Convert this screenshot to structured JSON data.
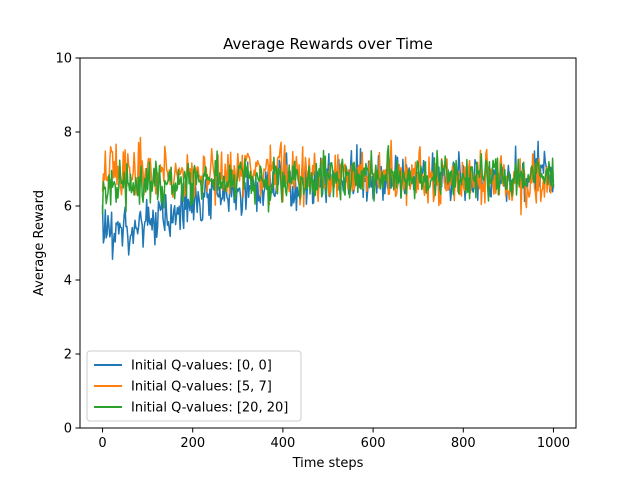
{
  "chart_data": {
    "type": "line",
    "title": "Average Rewards over Time",
    "xlabel": "Time steps",
    "ylabel": "Average Reward",
    "xlim": [
      -50,
      1050
    ],
    "ylim": [
      0,
      10
    ],
    "xticks": [
      0,
      200,
      400,
      600,
      800,
      1000
    ],
    "yticks": [
      0,
      2,
      4,
      6,
      8,
      10
    ],
    "grid": false,
    "legend_position": "lower-left",
    "series": [
      {
        "name": "Initial Q-values: [0, 0]",
        "color": "#1f77b4",
        "x": [
          0,
          50,
          100,
          150,
          200,
          250,
          300,
          350,
          400,
          450,
          500,
          550,
          600,
          650,
          700,
          750,
          800,
          850,
          900,
          950,
          1000
        ],
        "values": [
          5.3,
          5.35,
          5.5,
          5.7,
          6.0,
          6.25,
          6.4,
          6.55,
          6.65,
          6.7,
          6.75,
          6.8,
          6.8,
          6.8,
          6.8,
          6.8,
          6.8,
          6.8,
          6.8,
          6.8,
          6.8
        ],
        "noise_amplitude": 0.45
      },
      {
        "name": "Initial Q-values: [5, 7]",
        "color": "#ff7f0e",
        "x": [
          0,
          50,
          100,
          150,
          200,
          250,
          300,
          350,
          400,
          450,
          500,
          550,
          600,
          650,
          700,
          750,
          800,
          850,
          900,
          950,
          1000
        ],
        "values": [
          6.9,
          6.9,
          6.9,
          6.9,
          6.85,
          6.85,
          6.85,
          6.85,
          6.85,
          6.85,
          6.85,
          6.8,
          6.8,
          6.8,
          6.75,
          6.75,
          6.75,
          6.75,
          6.7,
          6.7,
          6.7
        ],
        "noise_amplitude": 0.5
      },
      {
        "name": "Initial Q-values: [20, 20]",
        "color": "#2ca02c",
        "x": [
          0,
          50,
          100,
          150,
          200,
          250,
          300,
          350,
          400,
          450,
          500,
          550,
          600,
          650,
          700,
          750,
          800,
          850,
          900,
          950,
          1000
        ],
        "values": [
          6.5,
          6.55,
          6.6,
          6.65,
          6.7,
          6.7,
          6.75,
          6.75,
          6.75,
          6.8,
          6.8,
          6.8,
          6.8,
          6.8,
          6.8,
          6.8,
          6.8,
          6.8,
          6.8,
          6.8,
          6.8
        ],
        "noise_amplitude": 0.45
      }
    ]
  }
}
